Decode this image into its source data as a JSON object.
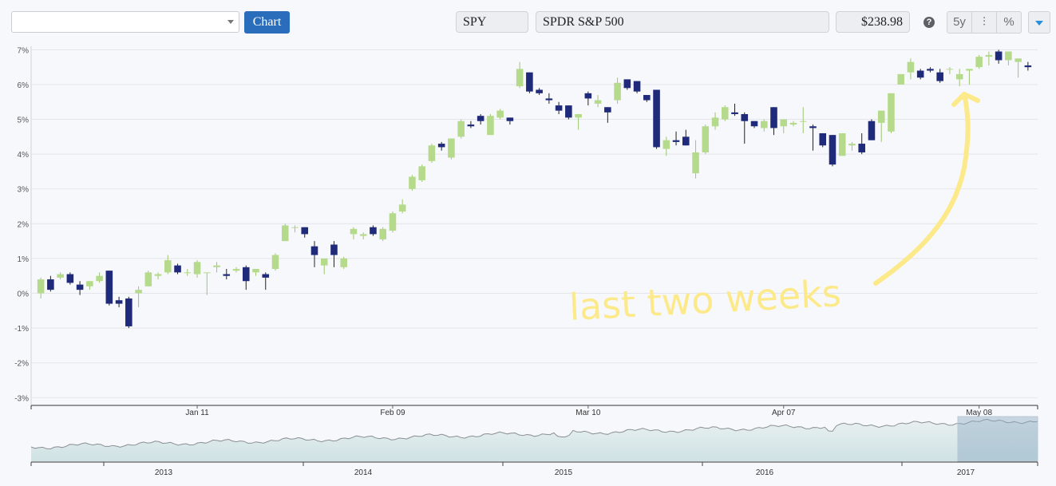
{
  "toolbar": {
    "select_value": "",
    "chart_button": "Chart",
    "ticker": "SPY",
    "name": "SPDR S&P 500",
    "price": "$238.98",
    "help_icon_glyph": "?",
    "period_button": "5y",
    "settings_icon_glyph": "⫶",
    "percent_button": "%"
  },
  "colors": {
    "up": "#b6da8c",
    "down": "#1f2a7a",
    "wick": "#222222",
    "grid": "#e3e5ea",
    "annotation": "#fce98a",
    "accent": "#2a6ebb"
  },
  "annotation": {
    "text": "last two weeks"
  },
  "chart_data": {
    "type": "candlestick",
    "y_unit": "%",
    "ylim": [
      -3.2,
      7.1
    ],
    "y_ticks": [
      {
        "v": 7,
        "label": "7%"
      },
      {
        "v": 6,
        "label": "6%"
      },
      {
        "v": 5,
        "label": "5%"
      },
      {
        "v": 4,
        "label": "4%"
      },
      {
        "v": 3,
        "label": "3%"
      },
      {
        "v": 2,
        "label": "2%"
      },
      {
        "v": 1,
        "label": "1%"
      },
      {
        "v": 0,
        "label": "0%"
      },
      {
        "v": -1,
        "label": "-1%"
      },
      {
        "v": -2,
        "label": "-2%"
      },
      {
        "v": -3,
        "label": "-3%"
      }
    ],
    "x_ticks": [
      {
        "i": 16,
        "label": "Jan 11"
      },
      {
        "i": 36,
        "label": "Feb 09"
      },
      {
        "i": 56,
        "label": "Mar 10"
      },
      {
        "i": 76,
        "label": "Apr 07"
      },
      {
        "i": 96,
        "label": "May 08"
      }
    ],
    "candles": [
      [
        0.0,
        0.45,
        -0.15,
        0.4
      ],
      [
        0.4,
        0.5,
        0.05,
        0.1
      ],
      [
        0.45,
        0.6,
        0.4,
        0.55
      ],
      [
        0.55,
        0.6,
        0.25,
        0.3
      ],
      [
        0.25,
        0.35,
        -0.05,
        0.1
      ],
      [
        0.2,
        0.35,
        0.1,
        0.35
      ],
      [
        0.35,
        0.6,
        0.3,
        0.5
      ],
      [
        0.65,
        0.65,
        -0.35,
        -0.3
      ],
      [
        -0.2,
        -0.1,
        -0.4,
        -0.3
      ],
      [
        -0.15,
        -0.1,
        -1.0,
        -0.95
      ],
      [
        0.0,
        0.2,
        -0.4,
        0.1
      ],
      [
        0.2,
        0.65,
        0.2,
        0.6
      ],
      [
        0.5,
        0.6,
        0.4,
        0.55
      ],
      [
        0.6,
        1.1,
        0.55,
        0.95
      ],
      [
        0.8,
        0.85,
        0.55,
        0.6
      ],
      [
        0.6,
        0.7,
        0.5,
        0.6
      ],
      [
        0.55,
        0.95,
        0.45,
        0.9
      ],
      [
        0.6,
        0.6,
        -0.05,
        0.6
      ],
      [
        0.75,
        0.9,
        0.6,
        0.8
      ],
      [
        0.55,
        0.7,
        0.4,
        0.5
      ],
      [
        0.65,
        0.75,
        0.6,
        0.7
      ],
      [
        0.75,
        0.8,
        0.1,
        0.35
      ],
      [
        0.6,
        0.7,
        0.5,
        0.7
      ],
      [
        0.55,
        0.6,
        0.1,
        0.45
      ],
      [
        0.7,
        1.15,
        0.65,
        1.1
      ],
      [
        1.5,
        2.0,
        1.5,
        1.95
      ],
      [
        1.9,
        1.95,
        1.75,
        1.9
      ],
      [
        1.9,
        1.9,
        1.6,
        1.7
      ],
      [
        1.35,
        1.5,
        0.75,
        1.1
      ],
      [
        0.8,
        1.0,
        0.55,
        1.0
      ],
      [
        1.4,
        1.5,
        0.75,
        1.1
      ],
      [
        0.75,
        1.05,
        0.7,
        1.0
      ],
      [
        1.7,
        1.9,
        1.55,
        1.85
      ],
      [
        1.65,
        1.75,
        1.55,
        1.7
      ],
      [
        1.9,
        1.95,
        1.65,
        1.7
      ],
      [
        1.55,
        1.9,
        1.5,
        1.85
      ],
      [
        1.8,
        2.35,
        1.75,
        2.3
      ],
      [
        2.35,
        2.7,
        2.3,
        2.55
      ],
      [
        3.0,
        3.4,
        2.95,
        3.35
      ],
      [
        3.25,
        3.7,
        3.2,
        3.65
      ],
      [
        3.8,
        4.3,
        3.75,
        4.25
      ],
      [
        4.3,
        4.35,
        4.1,
        4.2
      ],
      [
        3.9,
        4.45,
        3.85,
        4.45
      ],
      [
        4.5,
        5.0,
        4.45,
        4.95
      ],
      [
        4.85,
        4.95,
        4.75,
        4.8
      ],
      [
        5.1,
        5.15,
        4.85,
        4.95
      ],
      [
        4.55,
        5.15,
        4.55,
        5.1
      ],
      [
        5.05,
        5.3,
        5.0,
        5.25
      ],
      [
        5.05,
        5.05,
        4.85,
        4.95
      ],
      [
        5.95,
        6.65,
        5.9,
        6.45
      ],
      [
        6.35,
        6.35,
        5.75,
        5.8
      ],
      [
        5.85,
        5.9,
        5.7,
        5.75
      ],
      [
        5.6,
        5.75,
        5.45,
        5.55
      ],
      [
        5.4,
        5.5,
        5.15,
        5.25
      ],
      [
        5.4,
        5.4,
        5.0,
        5.05
      ],
      [
        5.05,
        5.15,
        4.7,
        5.15
      ],
      [
        5.75,
        5.8,
        5.4,
        5.6
      ],
      [
        5.45,
        5.7,
        5.35,
        5.55
      ],
      [
        5.35,
        5.35,
        4.9,
        5.2
      ],
      [
        5.55,
        6.2,
        5.45,
        6.05
      ],
      [
        6.15,
        6.15,
        5.85,
        5.9
      ],
      [
        6.1,
        6.1,
        5.75,
        5.8
      ],
      [
        5.7,
        5.7,
        5.5,
        5.55
      ],
      [
        5.85,
        5.85,
        4.15,
        4.2
      ],
      [
        4.15,
        4.5,
        3.95,
        4.4
      ],
      [
        4.4,
        4.65,
        4.25,
        4.35
      ],
      [
        4.5,
        4.7,
        4.25,
        4.25
      ],
      [
        3.45,
        4.4,
        3.3,
        4.05
      ],
      [
        4.05,
        4.85,
        4.0,
        4.8
      ],
      [
        4.8,
        5.2,
        4.7,
        5.05
      ],
      [
        5.0,
        5.4,
        4.95,
        5.35
      ],
      [
        5.2,
        5.45,
        5.1,
        5.15
      ],
      [
        5.15,
        5.2,
        4.3,
        4.95
      ],
      [
        4.95,
        4.95,
        4.75,
        4.8
      ],
      [
        4.75,
        5.0,
        4.65,
        4.95
      ],
      [
        5.35,
        5.35,
        4.55,
        4.75
      ],
      [
        4.8,
        5.0,
        4.6,
        5.0
      ],
      [
        4.85,
        4.95,
        4.8,
        4.9
      ],
      [
        4.95,
        5.35,
        4.6,
        4.95
      ],
      [
        4.8,
        4.85,
        4.1,
        4.75
      ],
      [
        4.6,
        4.6,
        4.2,
        4.25
      ],
      [
        4.55,
        4.55,
        3.65,
        3.7
      ],
      [
        3.95,
        4.6,
        3.95,
        4.6
      ],
      [
        4.25,
        4.35,
        4.1,
        4.3
      ],
      [
        4.3,
        4.6,
        4.0,
        4.05
      ],
      [
        4.95,
        5.0,
        4.4,
        4.4
      ],
      [
        4.9,
        5.2,
        4.35,
        5.25
      ],
      [
        4.65,
        5.7,
        4.6,
        5.75
      ],
      [
        6.0,
        6.3,
        6.0,
        6.3
      ],
      [
        6.35,
        6.75,
        6.15,
        6.65
      ],
      [
        6.4,
        6.45,
        6.15,
        6.2
      ],
      [
        6.45,
        6.5,
        6.35,
        6.4
      ],
      [
        6.35,
        6.45,
        6.05,
        6.1
      ],
      [
        6.45,
        6.5,
        6.3,
        6.45
      ],
      [
        6.15,
        6.45,
        5.95,
        6.3
      ],
      [
        6.4,
        6.45,
        6.0,
        6.45
      ],
      [
        6.5,
        6.85,
        6.45,
        6.8
      ],
      [
        6.8,
        6.95,
        6.55,
        6.85
      ],
      [
        6.95,
        7.0,
        6.6,
        6.7
      ],
      [
        6.7,
        6.95,
        6.55,
        6.95
      ],
      [
        6.65,
        6.75,
        6.2,
        6.75
      ],
      [
        6.55,
        6.65,
        6.4,
        6.5
      ]
    ],
    "navigator": {
      "x_labels": [
        "2013",
        "2014",
        "2015",
        "2016",
        "2017"
      ],
      "selection_label": "last two weeks range"
    }
  }
}
